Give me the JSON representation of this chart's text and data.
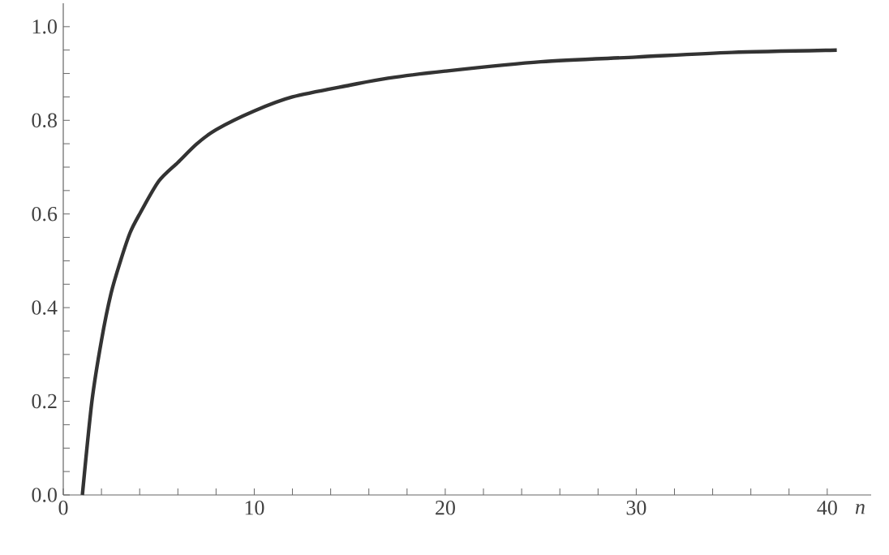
{
  "chart_data": {
    "type": "line",
    "xlabel": "n",
    "x": [
      1,
      1.5,
      2,
      2.5,
      3,
      3.5,
      4,
      5,
      6,
      7,
      8,
      10,
      12,
      15,
      17,
      20,
      25,
      30,
      35,
      40.5
    ],
    "values": [
      0,
      0.2,
      0.33,
      0.43,
      0.5,
      0.56,
      0.6,
      0.67,
      0.71,
      0.75,
      0.78,
      0.82,
      0.85,
      0.875,
      0.89,
      0.905,
      0.925,
      0.935,
      0.945,
      0.95
    ],
    "color": "#333333",
    "xlim": [
      0,
      42.3
    ],
    "ylim": [
      0,
      1.05
    ],
    "xticks": [
      0,
      {
        "value": 2,
        "label": null
      },
      {
        "value": 4,
        "label": null
      },
      {
        "value": 6,
        "label": null
      },
      {
        "value": 8,
        "label": null
      },
      10,
      {
        "value": 12,
        "label": null
      },
      {
        "value": 14,
        "label": null
      },
      {
        "value": 16,
        "label": null
      },
      {
        "value": 18,
        "label": null
      },
      20,
      {
        "value": 22,
        "label": null
      },
      {
        "value": 24,
        "label": null
      },
      {
        "value": 26,
        "label": null
      },
      {
        "value": 28,
        "label": null
      },
      30,
      {
        "value": 32,
        "label": null
      },
      {
        "value": 34,
        "label": null
      },
      {
        "value": 36,
        "label": null
      },
      {
        "value": 38,
        "label": null
      },
      40
    ],
    "yticks": [
      {
        "value": 0,
        "label": "0.0"
      },
      {
        "value": 0.05,
        "label": null
      },
      {
        "value": 0.1,
        "label": null
      },
      {
        "value": 0.15,
        "label": null
      },
      {
        "value": 0.2,
        "label": "0.2"
      },
      {
        "value": 0.25,
        "label": null
      },
      {
        "value": 0.3,
        "label": null
      },
      {
        "value": 0.35,
        "label": null
      },
      {
        "value": 0.4,
        "label": "0.4"
      },
      {
        "value": 0.45,
        "label": null
      },
      {
        "value": 0.5,
        "label": null
      },
      {
        "value": 0.55,
        "label": null
      },
      {
        "value": 0.6,
        "label": "0.6"
      },
      {
        "value": 0.65,
        "label": null
      },
      {
        "value": 0.7,
        "label": null
      },
      {
        "value": 0.75,
        "label": null
      },
      {
        "value": 0.8,
        "label": "0.8"
      },
      {
        "value": 0.85,
        "label": null
      },
      {
        "value": 0.9,
        "label": null
      },
      {
        "value": 0.95,
        "label": null
      },
      {
        "value": 1.0,
        "label": "1.0"
      }
    ],
    "marker": "none",
    "line_style": "solid"
  }
}
